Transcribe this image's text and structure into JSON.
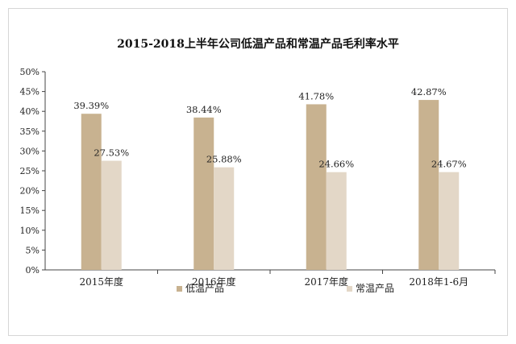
{
  "chart_data": {
    "type": "bar",
    "title": "2015-2018上半年公司低温产品和常温产品毛利率水平",
    "categories": [
      "2015年度",
      "2016年度",
      "2017年度",
      "2018年1-6月"
    ],
    "series": [
      {
        "name": "低温产品",
        "values": [
          39.39,
          38.44,
          41.78,
          42.87
        ],
        "labels": [
          "39.39%",
          "38.44%",
          "41.78%",
          "42.87%"
        ],
        "color": "#c8b290"
      },
      {
        "name": "常温产品",
        "values": [
          27.53,
          25.88,
          24.66,
          24.67
        ],
        "labels": [
          "27.53%",
          "25.88%",
          "24.66%",
          "24.67%"
        ],
        "color": "#e3d7c7"
      }
    ],
    "ylim": [
      0,
      50
    ],
    "yticks": [
      0,
      5,
      10,
      15,
      20,
      25,
      30,
      35,
      40,
      45,
      50
    ],
    "ytick_labels": [
      "0%",
      "5%",
      "10%",
      "15%",
      "20%",
      "25%",
      "30%",
      "35%",
      "40%",
      "45%",
      "50%"
    ],
    "legend_position": "bottom",
    "grid": false
  }
}
